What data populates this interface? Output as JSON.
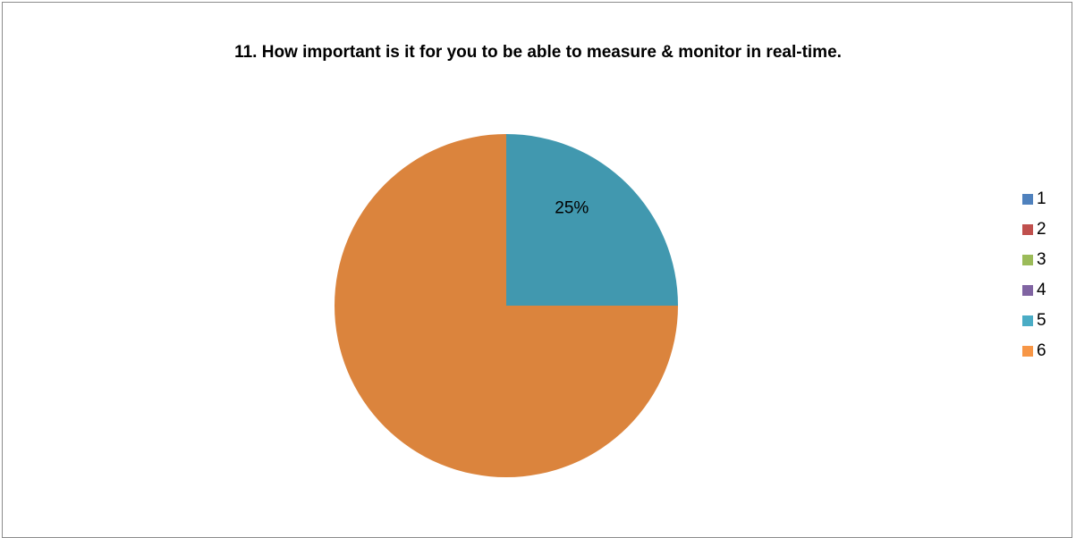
{
  "chart_data": {
    "type": "pie",
    "title": "11. How important is it for you to be able to measure & monitor in real-time.",
    "categories": [
      "1",
      "2",
      "3",
      "4",
      "5",
      "6"
    ],
    "values": [
      0,
      0,
      0,
      0,
      25,
      75
    ],
    "colors": [
      "#4f81bd",
      "#c0504d",
      "#9bbb59",
      "#8064a2",
      "#4aacc5",
      "#f79646"
    ],
    "slice_colors": [
      "#4a7ebb",
      "#be4b48",
      "#98b954",
      "#7d60a0",
      "#4198af",
      "#db843d"
    ],
    "data_labels": [
      {
        "category": "5",
        "text": "25%"
      }
    ],
    "legend_position": "right"
  }
}
